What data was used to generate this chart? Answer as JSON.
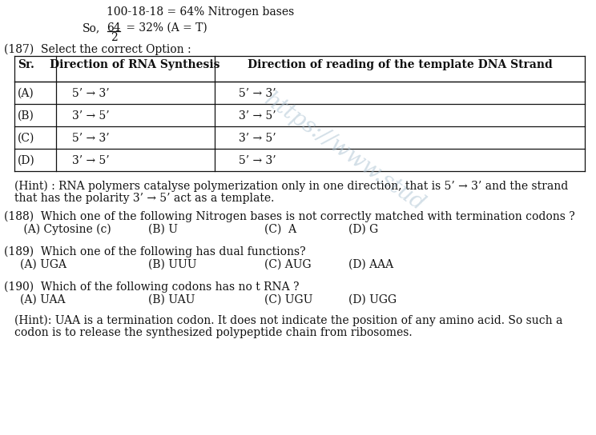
{
  "bg_color": "#ffffff",
  "text_color": "#111111",
  "line1": "100-18-18 = 64% Nitrogen bases",
  "frac_num": "64",
  "frac_den": "2",
  "line2_suffix": " = 32% (A = T)",
  "q187": "(187)  Select the correct Option :",
  "table_headers": [
    "Sr.",
    "Direction of RNA Synthesis",
    "Direction of reading of the template DNA Strand"
  ],
  "table_rows": [
    [
      "(A)",
      "5’ → 3’",
      "5’ → 3’"
    ],
    [
      "(B)",
      "3’ → 5’",
      "3’ → 5’"
    ],
    [
      "(C)",
      "5’ → 3’",
      "3’ → 5’"
    ],
    [
      "(D)",
      "3’ → 5’",
      "5’ → 3’"
    ]
  ],
  "hint187_l1": "(Hint) : RNA polymers catalyse polymerization only in one direction, that is 5’ → 3’ and the strand",
  "hint187_l2": "that has the polarity 3’ → 5’ act as a template.",
  "q188": "(188)  Which one of the following Nitrogen bases is not correctly matched with termination codons ?",
  "q188_opts": [
    " (A) Cytosine (c)",
    "(B) U",
    "(C)  A",
    "(D) G"
  ],
  "q189": "(189)  Which one of the following has dual functions?",
  "q189_opts": [
    "(A) UGA",
    "(B) UUU",
    "(C) AUG",
    "(D) AAA"
  ],
  "q190": "(190)  Which of the following codons has no t RNA ?",
  "q190_opts": [
    "(A) UAA",
    "(B) UAU",
    "(C) UGU",
    "(D) UGG"
  ],
  "hint190_l1": "(Hint): UAA is a termination codon. It does not indicate the position of any amino acid. So such a",
  "hint190_l2": "codon is to release the synthesized polypeptide chain from ribosomes.",
  "fs": 10.0
}
